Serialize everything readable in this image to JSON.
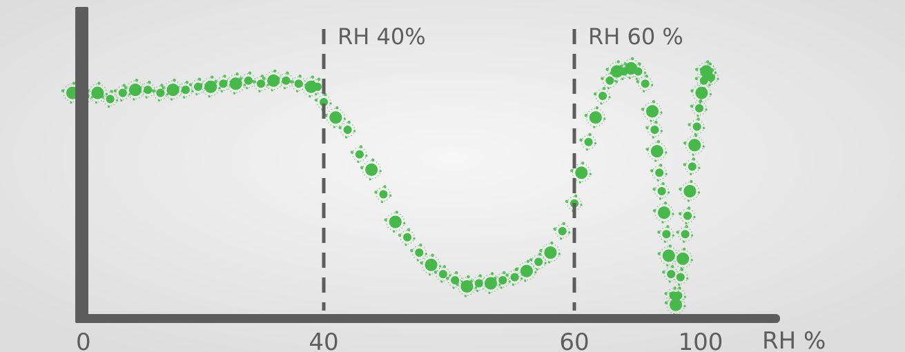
{
  "chart_data": {
    "type": "scatter",
    "title": "",
    "xlabel": "RH %",
    "ylabel": "",
    "x_ticks": [
      "0",
      "40",
      "60",
      "100"
    ],
    "reference_lines": [
      {
        "x": 40,
        "label": "RH 40%"
      },
      {
        "x": 60,
        "label": "RH 60 %"
      }
    ],
    "ylim": [
      0,
      100
    ],
    "grid": false,
    "point_color": "#46b94a",
    "axis_color": "#5d5d5d",
    "series": [
      {
        "x": [
          0,
          2,
          4,
          6,
          8,
          10,
          12,
          14,
          16,
          18,
          20,
          22,
          24,
          26,
          28,
          30,
          32,
          34,
          36,
          38,
          39,
          40,
          41,
          42,
          43,
          44,
          45,
          46,
          47,
          48,
          49,
          50,
          51,
          52,
          53,
          54,
          55,
          56,
          57,
          58,
          59,
          60,
          61,
          62,
          63,
          64,
          65,
          66,
          67,
          68,
          69,
          70,
          71,
          72,
          73,
          74,
          75,
          76,
          77,
          78,
          79,
          80,
          81,
          82,
          83,
          84,
          85,
          86,
          87,
          88,
          89,
          90,
          91,
          92,
          93,
          94,
          95,
          96,
          97
        ],
        "y": [
          72,
          71,
          72,
          70,
          72,
          73,
          73,
          72,
          73,
          73,
          74,
          74,
          75,
          75,
          76,
          75,
          76,
          76,
          75,
          74,
          74,
          69,
          64,
          60,
          52,
          47,
          39,
          30,
          25,
          20,
          16,
          13,
          11,
          9,
          10,
          10,
          11,
          12,
          14,
          17,
          20,
          27,
          36,
          46,
          56,
          64,
          71,
          76,
          79,
          79,
          80,
          79,
          75,
          66,
          60,
          53,
          46,
          40,
          33,
          26,
          19,
          13,
          6,
          3,
          6,
          12,
          18,
          26,
          32,
          40,
          48,
          55,
          61,
          67,
          72,
          76,
          79,
          79,
          77
        ],
        "size": [
          1,
          0,
          1,
          0,
          0,
          1,
          0,
          0,
          1,
          0,
          0,
          1,
          0,
          1,
          0,
          0,
          1,
          0,
          0,
          1,
          0,
          0,
          1,
          0,
          0,
          1,
          0,
          1,
          0,
          0,
          1,
          0,
          0,
          1,
          0,
          1,
          0,
          0,
          1,
          0,
          1,
          0,
          0,
          1,
          0,
          1,
          0,
          0,
          1,
          0,
          1,
          0,
          0,
          1,
          0,
          1,
          0,
          0,
          1,
          0,
          1,
          0,
          0,
          1,
          0,
          0,
          1,
          0,
          0,
          1,
          0,
          1,
          0,
          0,
          1,
          0,
          1,
          0,
          0
        ]
      }
    ]
  }
}
